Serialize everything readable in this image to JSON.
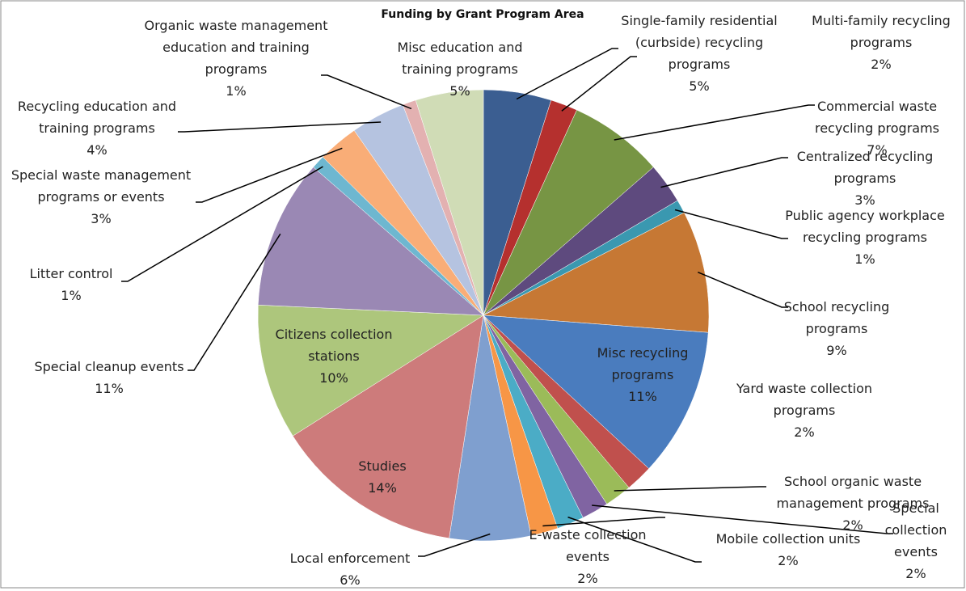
{
  "chart_data": {
    "type": "pie",
    "title": "Funding by Grant Program Area",
    "categories": [
      "Single-family residential (curbside) recycling programs",
      "Multi-family recycling programs",
      "Commercial waste recycling programs",
      "Centralized recycling programs",
      "Public agency workplace recycling programs",
      "School recycling programs",
      "Misc recycling programs",
      "Yard waste collection programs",
      "School organic waste management programs",
      "Special collection events",
      "Mobile collection units",
      "E-waste collection events",
      "Local enforcement",
      "Studies",
      "Citizens collection stations",
      "Special cleanup events",
      "Litter control",
      "Special waste management programs or events",
      "Recycling education and training programs",
      "Organic waste management education and training programs",
      "Misc education and training programs"
    ],
    "values": [
      5,
      2,
      7,
      3,
      1,
      9,
      11,
      2,
      2,
      2,
      2,
      2,
      6,
      14,
      10,
      11,
      1,
      3,
      4,
      1,
      5
    ],
    "value_labels": [
      "5%",
      "2%",
      "7%",
      "3%",
      "1%",
      "9%",
      "11%",
      "2%",
      "2%",
      "2%",
      "2%",
      "2%",
      "6%",
      "14%",
      "10%",
      "11%",
      "1%",
      "3%",
      "4%",
      "1%",
      "5%"
    ],
    "colors": [
      "#3B5E91",
      "#B5302E",
      "#779544",
      "#5E4A7E",
      "#3A98B0",
      "#C67834",
      "#4A7CBE",
      "#C0504D",
      "#9BBB59",
      "#8064A2",
      "#4BACC6",
      "#F79646",
      "#7F9FCF",
      "#CD7B7B",
      "#ADC67C",
      "#9A88B4",
      "#6EB7D0",
      "#F9AD77",
      "#B5C3E0",
      "#E3B1B1",
      "#D0DCB6"
    ]
  }
}
